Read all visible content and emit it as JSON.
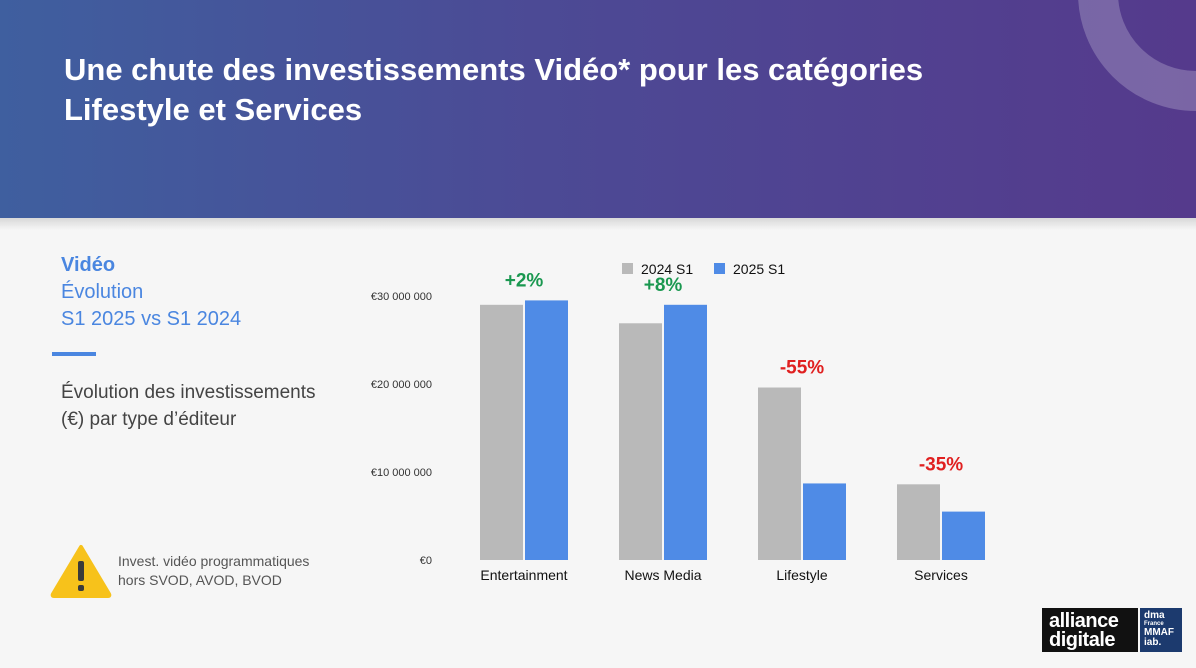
{
  "header": {
    "title": "Une chute des investissements Vidéo* pour les catégories Lifestyle et Services"
  },
  "sidebar": {
    "label": "Vidéo",
    "subtitle_line1": "Évolution",
    "subtitle_line2": "S1 2025 vs S1 2024",
    "description": "Évolution des investissements (€) par type d’éditeur"
  },
  "note": {
    "line1": "Invest. vidéo programmatiques",
    "line2": "hors SVOD, AVOD, BVOD",
    "icon": "warning-triangle-icon"
  },
  "logo": {
    "line1": "alliance",
    "line2": "digitale",
    "badge_line1": "dma",
    "badge_line2": "France",
    "badge_line3": "MMAF",
    "badge_line4": "iab."
  },
  "colors": {
    "series_2024": "#b9b9b9",
    "series_2025": "#4f8be6",
    "positive": "#1a9850",
    "negative": "#e02020",
    "accent": "#4a86e0"
  },
  "chart_data": {
    "type": "bar",
    "categories": [
      "Entertainment",
      "News Media",
      "Lifestyle",
      "Services"
    ],
    "series": [
      {
        "name": "2024 S1",
        "values": [
          29000000,
          26900000,
          19600000,
          8600000
        ]
      },
      {
        "name": "2025 S1",
        "values": [
          29500000,
          29000000,
          8700000,
          5500000
        ]
      }
    ],
    "changes": [
      "+2%",
      "+8%",
      "-55%",
      "-35%"
    ],
    "change_signs": [
      "positive",
      "positive",
      "negative",
      "negative"
    ],
    "y_ticks": [
      0,
      10000000,
      20000000,
      30000000
    ],
    "y_tick_labels": [
      "€0",
      "€10 000 000",
      "€20 000 000",
      "€30 000 000"
    ],
    "ylim": [
      0,
      30000000
    ],
    "legend_position": "top",
    "grid": false
  }
}
